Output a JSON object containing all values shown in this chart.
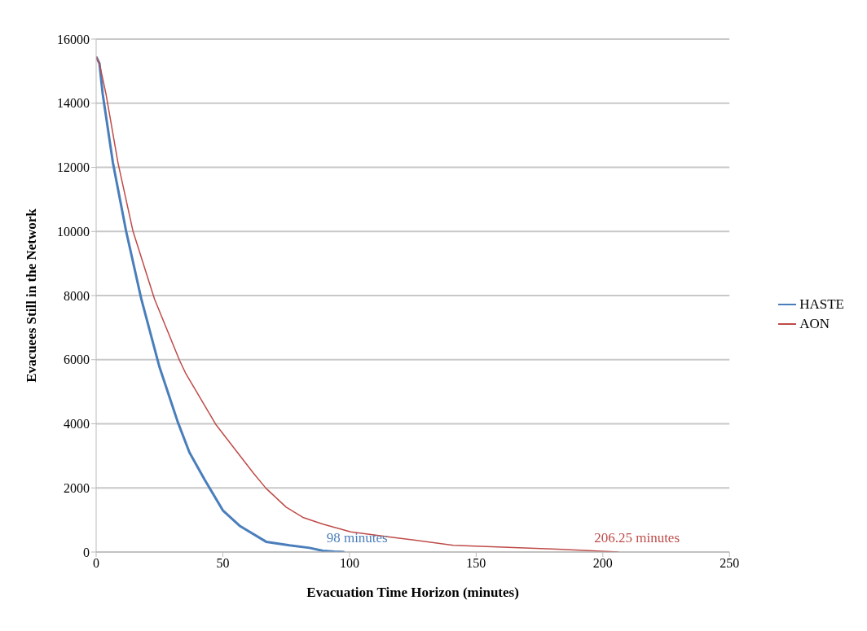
{
  "chart_data": {
    "type": "line",
    "xlabel": "Evacuation Time Horizon (minutes)",
    "ylabel": "Evacuees Still in the Network",
    "xlim": [
      0,
      250
    ],
    "xticks": [
      0,
      50,
      100,
      150,
      200,
      250
    ],
    "ylim": [
      0,
      16000
    ],
    "yticks": [
      0,
      2000,
      4000,
      6000,
      8000,
      10000,
      12000,
      14000,
      16000
    ],
    "grid": "y",
    "legend": "right",
    "marker": "none",
    "series": [
      {
        "name": "HASTE",
        "color": "#4a7ebb",
        "x": [
          0,
          1.3,
          2.6,
          6.6,
          11.8,
          17.8,
          25,
          32.2,
          36.8,
          42.8,
          50,
          56.6,
          67.1,
          76.3,
          84.2,
          89.5,
          94,
          98
        ],
        "values": [
          15450,
          15240,
          14280,
          12150,
          10020,
          7900,
          5770,
          4060,
          3110,
          2260,
          1300,
          820,
          320,
          210,
          130,
          40,
          10,
          0
        ]
      },
      {
        "name": "AON",
        "color": "#be4b48",
        "x": [
          0,
          1.3,
          3.9,
          8.6,
          14.5,
          23,
          32.9,
          35.5,
          47.4,
          62,
          67,
          75,
          81.6,
          89.5,
          100.5,
          117,
          141,
          160.5,
          182,
          206.25
        ],
        "values": [
          15450,
          15240,
          14280,
          12150,
          10020,
          7900,
          5980,
          5550,
          3960,
          2470,
          1990,
          1400,
          1080,
          870,
          630,
          460,
          210,
          150,
          90,
          0
        ]
      }
    ],
    "annotations": [
      {
        "text": "98 minutes",
        "x": 98,
        "y": 0
      },
      {
        "text": "206.25 minutes",
        "x": 206.25,
        "y": 0
      }
    ]
  }
}
